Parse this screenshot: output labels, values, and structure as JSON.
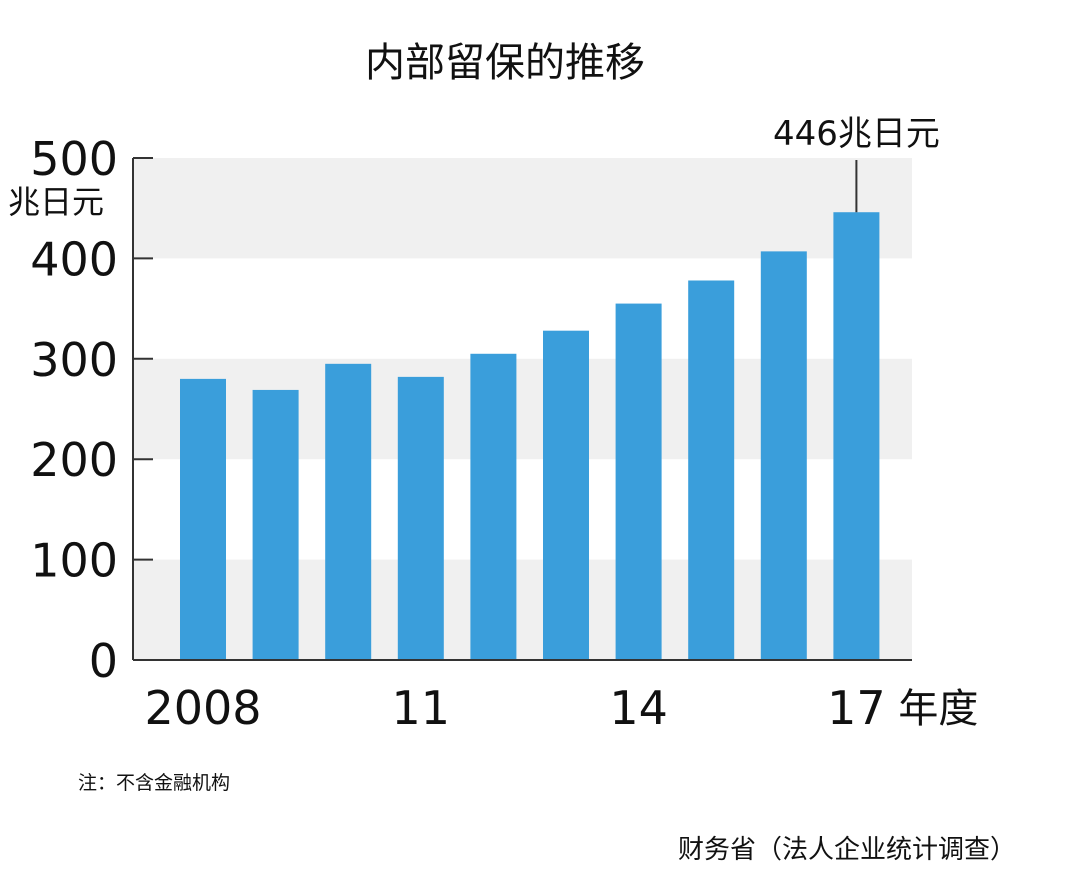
{
  "chart_data": {
    "type": "bar",
    "title": "内部留保的推移",
    "y_unit": "兆日元",
    "x_unit": "年度",
    "categories": [
      "2008",
      "2009",
      "2010",
      "2011",
      "2012",
      "2013",
      "2014",
      "2015",
      "2016",
      "2017"
    ],
    "x_tick_labels": [
      "2008",
      "",
      "",
      "11",
      "",
      "",
      "14",
      "",
      "",
      "17"
    ],
    "values": [
      280,
      269,
      295,
      282,
      305,
      328,
      355,
      378,
      407,
      446
    ],
    "ylim": [
      0,
      500
    ],
    "y_ticks": [
      "0",
      "100",
      "200",
      "300",
      "400",
      "500"
    ],
    "annotation": "446兆日元",
    "grid": "alternating horizontal bands",
    "bar_color": "#3a9edb",
    "band_color": "#f0f0f0"
  },
  "note": "注：不含金融机构",
  "source": "财务省（法人企业统计调查）"
}
